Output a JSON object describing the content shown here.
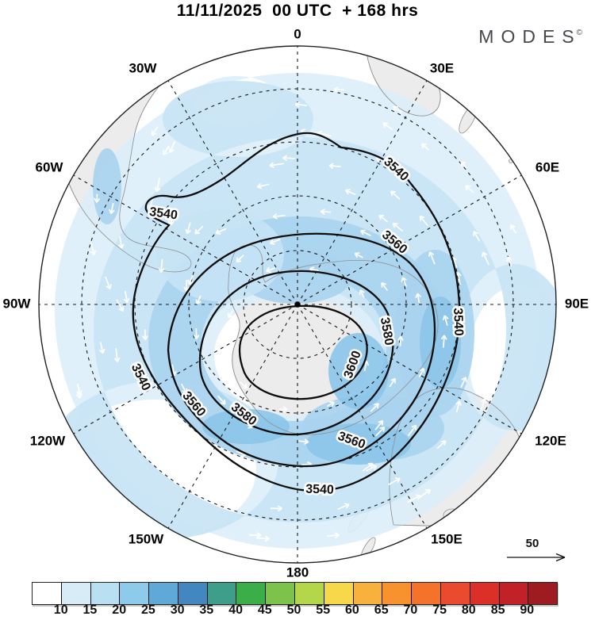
{
  "header": {
    "title": "11/11/2025  00 UTC  + 168 hrs",
    "brand": "MODES",
    "brand_mark": "©"
  },
  "map": {
    "compass_labels": [
      "0",
      "30E",
      "60E",
      "90E",
      "120E",
      "150E",
      "180",
      "150W",
      "120W",
      "90W",
      "60W",
      "30W"
    ],
    "contour_labels": [
      "3540",
      "3540",
      "3540",
      "3540",
      "3540",
      "3560",
      "3560",
      "3560",
      "3580",
      "3580",
      "3600"
    ],
    "wind_reference_label": "50"
  },
  "colorbar": {
    "tick_labels": [
      "10",
      "15",
      "20",
      "25",
      "30",
      "35",
      "40",
      "45",
      "50",
      "55",
      "60",
      "65",
      "70",
      "75",
      "80",
      "85",
      "90"
    ],
    "colors": [
      "#ffffff",
      "#d8ecf8",
      "#b9dff3",
      "#8ecbea",
      "#5fa8d8",
      "#4287c0",
      "#3f9e8a",
      "#3cae49",
      "#7cc24b",
      "#b4d64b",
      "#f8d84b",
      "#f9b13e",
      "#f7922e",
      "#f4722a",
      "#ea4a2d",
      "#dc2f28",
      "#c22127",
      "#9e1b20"
    ]
  },
  "chart_data": {
    "type": "heatmap",
    "title": "11/11/2025 00 UTC + 168 hrs",
    "projection": "southern-hemisphere polar view, pole at center",
    "contour_levels": [
      3540,
      3560,
      3580,
      3600
    ],
    "contour_interval": 20,
    "innermost_closed_contour": 3600,
    "outermost_labeled_contour": 3540,
    "longitude_labels": [
      "0",
      "30E",
      "60E",
      "90E",
      "120E",
      "150E",
      "180",
      "150W",
      "120W",
      "90W",
      "60W",
      "30W"
    ],
    "shading_scale_ticks": [
      10,
      15,
      20,
      25,
      30,
      35,
      40,
      45,
      50,
      55,
      60,
      65,
      70,
      75,
      80,
      85,
      90
    ],
    "shading_scale_colors": [
      "#ffffff",
      "#d8ecf8",
      "#b9dff3",
      "#8ecbea",
      "#5fa8d8",
      "#4287c0",
      "#3f9e8a",
      "#3cae49",
      "#7cc24b",
      "#b4d64b",
      "#f8d84b",
      "#f9b13e",
      "#f7922e",
      "#f4722a",
      "#ea4a2d",
      "#dc2f28",
      "#c22127",
      "#9e1b20"
    ],
    "shading_values_present_on_map": [
      10,
      15,
      20,
      25,
      30
    ],
    "vector_reference_value": 50,
    "legend_position": "bottom"
  }
}
